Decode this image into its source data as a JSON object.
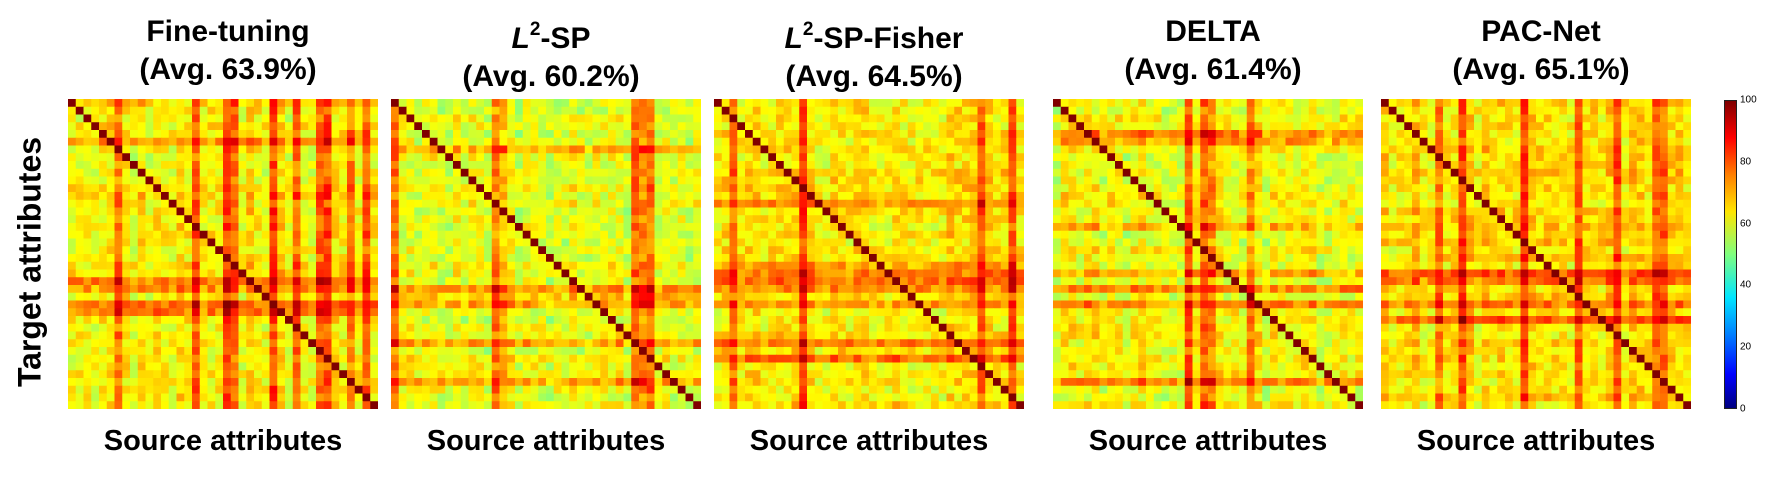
{
  "figure": {
    "y_label": "Target attributes",
    "colorbar": {
      "min": 0,
      "max": 100,
      "ticks": [
        "100",
        "80",
        "60",
        "40",
        "20",
        "0"
      ]
    }
  },
  "panels": [
    {
      "name": "fine-tuning",
      "title": "Fine-tuning",
      "title_prefix": "",
      "title_sup": "",
      "title_suffix": "",
      "avg": "(Avg. 63.9%)",
      "xlabel": "Source attributes"
    },
    {
      "name": "l2-sp",
      "title": "",
      "title_prefix": "L",
      "title_sup": "2",
      "title_suffix": "-SP",
      "avg": "(Avg. 60.2%)",
      "xlabel": "Source attributes"
    },
    {
      "name": "l2-sp-fisher",
      "title": "",
      "title_prefix": "L",
      "title_sup": "2",
      "title_suffix": "-SP-Fisher",
      "avg": "(Avg. 64.5%)",
      "xlabel": "Source attributes"
    },
    {
      "name": "delta",
      "title": "DELTA",
      "title_prefix": "",
      "title_sup": "",
      "title_suffix": "",
      "avg": "(Avg. 61.4%)",
      "xlabel": "Source attributes"
    },
    {
      "name": "pac-net",
      "title": "PAC-Net",
      "title_prefix": "",
      "title_sup": "",
      "title_suffix": "",
      "avg": "(Avg. 65.1%)",
      "xlabel": "Source attributes"
    }
  ],
  "chart_data": [
    {
      "type": "heatmap",
      "title": "Fine-tuning (Avg. 63.9%)",
      "xlabel": "Source attributes",
      "ylabel": "Target attributes",
      "n_attributes": 40,
      "average": 63.9,
      "diagonal": 100,
      "vmin": 0,
      "vmax": 100
    },
    {
      "type": "heatmap",
      "title": "L2-SP (Avg. 60.2%)",
      "xlabel": "Source attributes",
      "ylabel": "Target attributes",
      "n_attributes": 40,
      "average": 60.2,
      "diagonal": 100,
      "vmin": 0,
      "vmax": 100
    },
    {
      "type": "heatmap",
      "title": "L2-SP-Fisher (Avg. 64.5%)",
      "xlabel": "Source attributes",
      "ylabel": "Target attributes",
      "n_attributes": 40,
      "average": 64.5,
      "diagonal": 100,
      "vmin": 0,
      "vmax": 100
    },
    {
      "type": "heatmap",
      "title": "DELTA (Avg. 61.4%)",
      "xlabel": "Source attributes",
      "ylabel": "Target attributes",
      "n_attributes": 40,
      "average": 61.4,
      "diagonal": 100,
      "vmin": 0,
      "vmax": 100
    },
    {
      "type": "heatmap",
      "title": "PAC-Net (Avg. 65.1%)",
      "xlabel": "Source attributes",
      "ylabel": "Target attributes",
      "n_attributes": 40,
      "average": 65.1,
      "diagonal": 100,
      "vmin": 0,
      "vmax": 100
    }
  ]
}
